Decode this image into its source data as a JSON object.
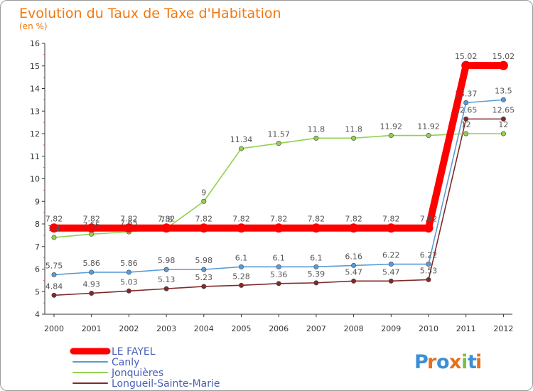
{
  "chart_data": {
    "type": "line",
    "title": "Evolution du Taux de Taxe d'Habitation",
    "subtitle": "(en %)",
    "xlabel": "",
    "ylabel": "",
    "x": [
      "2000",
      "2001",
      "2002",
      "2003",
      "2004",
      "2005",
      "2006",
      "2007",
      "2008",
      "2009",
      "2010",
      "2011",
      "2012"
    ],
    "ylim": [
      4,
      16
    ],
    "yticks": [
      "4",
      "5",
      "6",
      "7",
      "8",
      "9",
      "10",
      "11",
      "12",
      "13",
      "14",
      "15",
      "16"
    ],
    "grid": false,
    "legend_position": "bottom-left",
    "series": [
      {
        "name": "LE FAYEL",
        "color": "#ff0000",
        "values": [
          7.82,
          7.82,
          7.82,
          7.82,
          7.82,
          7.82,
          7.82,
          7.82,
          7.82,
          7.82,
          7.82,
          15.02,
          15.02
        ],
        "labels": [
          "7.82",
          "7.82",
          "7.82",
          "7.82",
          "7.82",
          "7.82",
          "7.82",
          "7.82",
          "7.82",
          "7.82",
          "7.82",
          "15.02",
          "15.02"
        ]
      },
      {
        "name": "Canly",
        "color": "#5b9bd5",
        "values": [
          5.75,
          5.86,
          5.86,
          5.98,
          5.98,
          6.1,
          6.1,
          6.1,
          6.16,
          6.22,
          6.22,
          13.37,
          13.5
        ],
        "labels": [
          "5.75",
          "5.86",
          "5.86",
          "5.98",
          "5.98",
          "6.1",
          "6.1",
          "6.1",
          "6.16",
          "6.22",
          "6.22",
          "13.37",
          "13.5"
        ]
      },
      {
        "name": "Jonquières",
        "color": "#92d050",
        "values": [
          7.4,
          7.55,
          7.65,
          7.8,
          9,
          11.34,
          11.57,
          11.8,
          11.8,
          11.92,
          11.92,
          12,
          12
        ],
        "labels": [
          "7.4",
          "7.55",
          "7.65",
          "7.8",
          "9",
          "11.34",
          "11.57",
          "11.8",
          "11.8",
          "11.92",
          "11.92",
          "12",
          "12"
        ]
      },
      {
        "name": "Longueil-Sainte-Marie",
        "color": "#7f2a2a",
        "values": [
          4.84,
          4.93,
          5.03,
          5.13,
          5.23,
          5.28,
          5.36,
          5.39,
          5.47,
          5.47,
          5.53,
          12.65,
          12.65
        ],
        "labels": [
          "4.84",
          "4.93",
          "5.03",
          "5.13",
          "5.23",
          "5.28",
          "5.36",
          "5.39",
          "5.47",
          "5.47",
          "5.53",
          "12.65",
          "12.65"
        ]
      }
    ]
  },
  "branding": {
    "logo_letters": [
      "P",
      "r",
      "o",
      "x",
      "i",
      "t",
      "i"
    ],
    "logo_colors": [
      "#3b8fd6",
      "#e8701a",
      "#3b8fd6",
      "#e8701a",
      "#7cc242",
      "#3b8fd6",
      "#e8701a"
    ]
  }
}
